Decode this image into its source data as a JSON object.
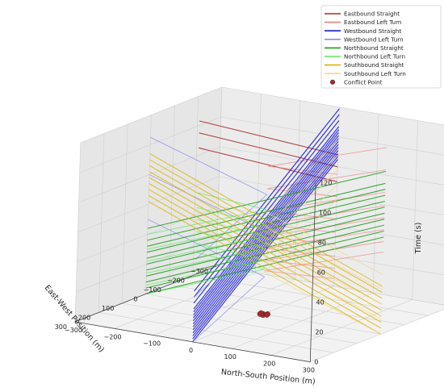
{
  "chart_data": {
    "type": "line",
    "projection": "3d",
    "xlabel": "North-South Position (m)",
    "ylabel": "East-West Position (m)",
    "zlabel": "Time (s)",
    "xlim": [
      -300,
      300
    ],
    "ylim": [
      -300,
      300
    ],
    "zlim": [
      0,
      120
    ],
    "x_ticks": [
      "−300",
      "−200",
      "−100",
      "0",
      "100",
      "200",
      "300"
    ],
    "y_ticks": [
      "−300",
      "−200",
      "−100",
      "0",
      "100",
      "200",
      "300"
    ],
    "z_ticks": [
      "0",
      "20",
      "40",
      "60",
      "80",
      "100",
      "120"
    ],
    "grid": true,
    "legend_position": "top-right",
    "legend": [
      {
        "label": "Eastbound Straight",
        "color": "#a52a2a",
        "kind": "line"
      },
      {
        "label": "Eastbound Left Turn",
        "color": "#f08080",
        "kind": "line"
      },
      {
        "label": "Westbound Straight",
        "color": "#1a1ad6",
        "kind": "line"
      },
      {
        "label": "Westbound Left Turn",
        "color": "#8a8af5",
        "kind": "line"
      },
      {
        "label": "Northbound Straight",
        "color": "#1f9e1f",
        "kind": "line"
      },
      {
        "label": "Northbound Left Turn",
        "color": "#5fe85f",
        "kind": "line"
      },
      {
        "label": "Southbound Straight",
        "color": "#e0b400",
        "kind": "line"
      },
      {
        "label": "Southbound Left Turn",
        "color": "#f0d78a",
        "kind": "line"
      },
      {
        "label": "Conflict Point",
        "color": "#a52a2a",
        "kind": "marker"
      }
    ],
    "series": [
      {
        "name": "Eastbound Straight",
        "color": "#a52a2a",
        "width": 1.1,
        "opacity": 0.85,
        "t0": [
          70,
          80,
          88
        ],
        "lines": [
          [
            [
              0,
              -300,
              "t"
            ],
            [
              0,
              300,
              "t+60"
            ]
          ]
        ]
      },
      {
        "name": "Eastbound Left Turn",
        "color": "#f08080",
        "width": 0.9,
        "opacity": 0.7,
        "t0": [
          5,
          12,
          20,
          28,
          36,
          45,
          60,
          75
        ],
        "lines": [
          [
            [
              0,
              -300,
              "t"
            ],
            [
              0,
              0,
              "t+24"
            ],
            [
              300,
              0,
              "t+50"
            ]
          ]
        ]
      },
      {
        "name": "Westbound Straight",
        "color": "#1a1ad6",
        "width": 1.2,
        "opacity": 0.85,
        "t0": [
          0,
          2,
          4,
          6,
          8,
          10,
          12,
          14,
          16,
          18,
          20,
          22,
          26,
          30,
          34
        ],
        "lines": [
          [
            [
              0,
              300,
              "t"
            ],
            [
              0,
              -300,
              "t+85"
            ]
          ]
        ]
      },
      {
        "name": "Westbound Left Turn",
        "color": "#8a8af5",
        "width": 0.9,
        "opacity": 0.75,
        "t0": [
          0,
          30,
          55
        ],
        "lines": [
          [
            [
              0,
              300,
              "t"
            ],
            [
              0,
              0,
              "t+25"
            ],
            [
              -300,
              0,
              "t+50"
            ]
          ]
        ]
      },
      {
        "name": "Northbound Straight",
        "color": "#1f9e1f",
        "width": 1.1,
        "opacity": 0.85,
        "t0": [
          0,
          4,
          8,
          12,
          16,
          20,
          24,
          28,
          32,
          36,
          44
        ],
        "lines": [
          [
            [
              -300,
              0,
              "t"
            ],
            [
              300,
              0,
              "t+65"
            ]
          ]
        ]
      },
      {
        "name": "Northbound Left Turn",
        "color": "#5fe85f",
        "width": 0.9,
        "opacity": 0.75,
        "t0": [
          0,
          6,
          14,
          22,
          30,
          40
        ],
        "lines": [
          [
            [
              -300,
              0,
              "t"
            ],
            [
              0,
              0,
              "t+30"
            ],
            [
              0,
              300,
              "t+60"
            ]
          ]
        ]
      },
      {
        "name": "Southbound Straight",
        "color": "#e0b400",
        "width": 1.0,
        "opacity": 0.85,
        "t0": [
          0,
          4,
          8,
          12,
          16,
          20,
          24,
          28,
          32
        ],
        "lines": [
          [
            [
              300,
              0,
              "t"
            ],
            [
              -300,
              0,
              "t+62"
            ]
          ]
        ]
      },
      {
        "name": "Southbound Left Turn",
        "color": "#f0d78a",
        "width": 0.9,
        "opacity": 0.75,
        "t0": [
          0,
          10,
          20,
          30,
          40
        ],
        "lines": [
          [
            [
              300,
              0,
              "t"
            ],
            [
              0,
              0,
              "t+28"
            ],
            [
              0,
              -300,
              "t+58"
            ]
          ]
        ]
      }
    ],
    "conflict_points": [
      [
        0,
        0,
        0
      ],
      [
        8,
        -5,
        0
      ],
      [
        -6,
        4,
        0
      ],
      [
        4,
        8,
        0
      ],
      [
        -8,
        -4,
        0
      ],
      [
        10,
        2,
        0
      ]
    ]
  }
}
